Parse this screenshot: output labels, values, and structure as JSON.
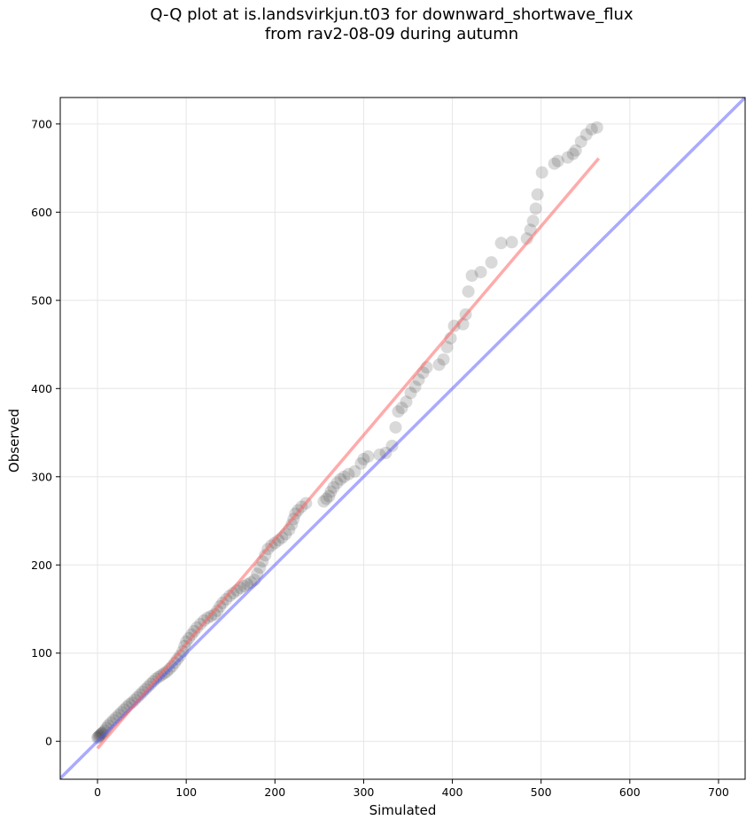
{
  "chart_data": {
    "type": "scatter",
    "title_line1": "Q-Q plot at is.landsvirkjun.t03 for downward_shortwave_flux",
    "title_line2": "from rav2-08-09 during autumn",
    "xlabel": "Simulated",
    "ylabel": "Observed",
    "xlim": [
      -42,
      730
    ],
    "ylim": [
      -43,
      730
    ],
    "xticks": [
      0,
      100,
      200,
      300,
      400,
      500,
      600,
      700
    ],
    "yticks": [
      0,
      100,
      200,
      300,
      400,
      500,
      600,
      700
    ],
    "grid": true,
    "one_to_one_line": {
      "color": "#5555ff",
      "from": [
        -42,
        -42
      ],
      "to": [
        730,
        730
      ]
    },
    "fit_line": {
      "color": "#ff6666",
      "from": [
        0,
        -8
      ],
      "to": [
        565,
        661
      ]
    },
    "point_color": "#404040",
    "points": [
      [
        0,
        4
      ],
      [
        1,
        5
      ],
      [
        2,
        6
      ],
      [
        3,
        7
      ],
      [
        4,
        8
      ],
      [
        5,
        9
      ],
      [
        6,
        10
      ],
      [
        8,
        12
      ],
      [
        10,
        15
      ],
      [
        12,
        18
      ],
      [
        15,
        21
      ],
      [
        18,
        24
      ],
      [
        21,
        27
      ],
      [
        24,
        30
      ],
      [
        27,
        33
      ],
      [
        30,
        36
      ],
      [
        33,
        39
      ],
      [
        36,
        42
      ],
      [
        39,
        44
      ],
      [
        42,
        47
      ],
      [
        45,
        50
      ],
      [
        48,
        53
      ],
      [
        51,
        56
      ],
      [
        54,
        59
      ],
      [
        57,
        62
      ],
      [
        60,
        65
      ],
      [
        63,
        68
      ],
      [
        66,
        71
      ],
      [
        69,
        73
      ],
      [
        72,
        75
      ],
      [
        75,
        77
      ],
      [
        78,
        79
      ],
      [
        81,
        82
      ],
      [
        84,
        85
      ],
      [
        87,
        89
      ],
      [
        90,
        93
      ],
      [
        93,
        97
      ],
      [
        96,
        102
      ],
      [
        98,
        108
      ],
      [
        100,
        113
      ],
      [
        103,
        117
      ],
      [
        106,
        121
      ],
      [
        109,
        125
      ],
      [
        112,
        129
      ],
      [
        116,
        133
      ],
      [
        120,
        137
      ],
      [
        124,
        140
      ],
      [
        128,
        142
      ],
      [
        132,
        144
      ],
      [
        135,
        148
      ],
      [
        138,
        153
      ],
      [
        141,
        157
      ],
      [
        145,
        161
      ],
      [
        149,
        165
      ],
      [
        153,
        168
      ],
      [
        157,
        171
      ],
      [
        161,
        174
      ],
      [
        165,
        176
      ],
      [
        169,
        178
      ],
      [
        173,
        180
      ],
      [
        177,
        183
      ],
      [
        180,
        190
      ],
      [
        183,
        197
      ],
      [
        186,
        204
      ],
      [
        189,
        211
      ],
      [
        192,
        218
      ],
      [
        196,
        222
      ],
      [
        200,
        225
      ],
      [
        204,
        228
      ],
      [
        208,
        231
      ],
      [
        212,
        235
      ],
      [
        216,
        240
      ],
      [
        219,
        246
      ],
      [
        221,
        252
      ],
      [
        223,
        258
      ],
      [
        226,
        262
      ],
      [
        230,
        266
      ],
      [
        235,
        270
      ],
      [
        255,
        272
      ],
      [
        258,
        275
      ],
      [
        261,
        278
      ],
      [
        263,
        283
      ],
      [
        266,
        288
      ],
      [
        270,
        293
      ],
      [
        274,
        297
      ],
      [
        278,
        300
      ],
      [
        283,
        303
      ],
      [
        290,
        306
      ],
      [
        297,
        315
      ],
      [
        300,
        320
      ],
      [
        305,
        323
      ],
      [
        318,
        325
      ],
      [
        325,
        327
      ],
      [
        332,
        335
      ],
      [
        336,
        356
      ],
      [
        339,
        374
      ],
      [
        343,
        378
      ],
      [
        348,
        385
      ],
      [
        353,
        395
      ],
      [
        358,
        402
      ],
      [
        362,
        410
      ],
      [
        367,
        418
      ],
      [
        371,
        424
      ],
      [
        385,
        427
      ],
      [
        390,
        433
      ],
      [
        394,
        447
      ],
      [
        398,
        457
      ],
      [
        402,
        471
      ],
      [
        412,
        473
      ],
      [
        415,
        484
      ],
      [
        418,
        510
      ],
      [
        422,
        528
      ],
      [
        432,
        532
      ],
      [
        444,
        543
      ],
      [
        455,
        565
      ],
      [
        467,
        566
      ],
      [
        484,
        570
      ],
      [
        488,
        580
      ],
      [
        491,
        590
      ],
      [
        494,
        604
      ],
      [
        496,
        620
      ],
      [
        501,
        645
      ],
      [
        515,
        655
      ],
      [
        519,
        658
      ],
      [
        530,
        662
      ],
      [
        536,
        666
      ],
      [
        539,
        670
      ],
      [
        545,
        680
      ],
      [
        551,
        688
      ],
      [
        557,
        694
      ],
      [
        563,
        696
      ]
    ]
  }
}
